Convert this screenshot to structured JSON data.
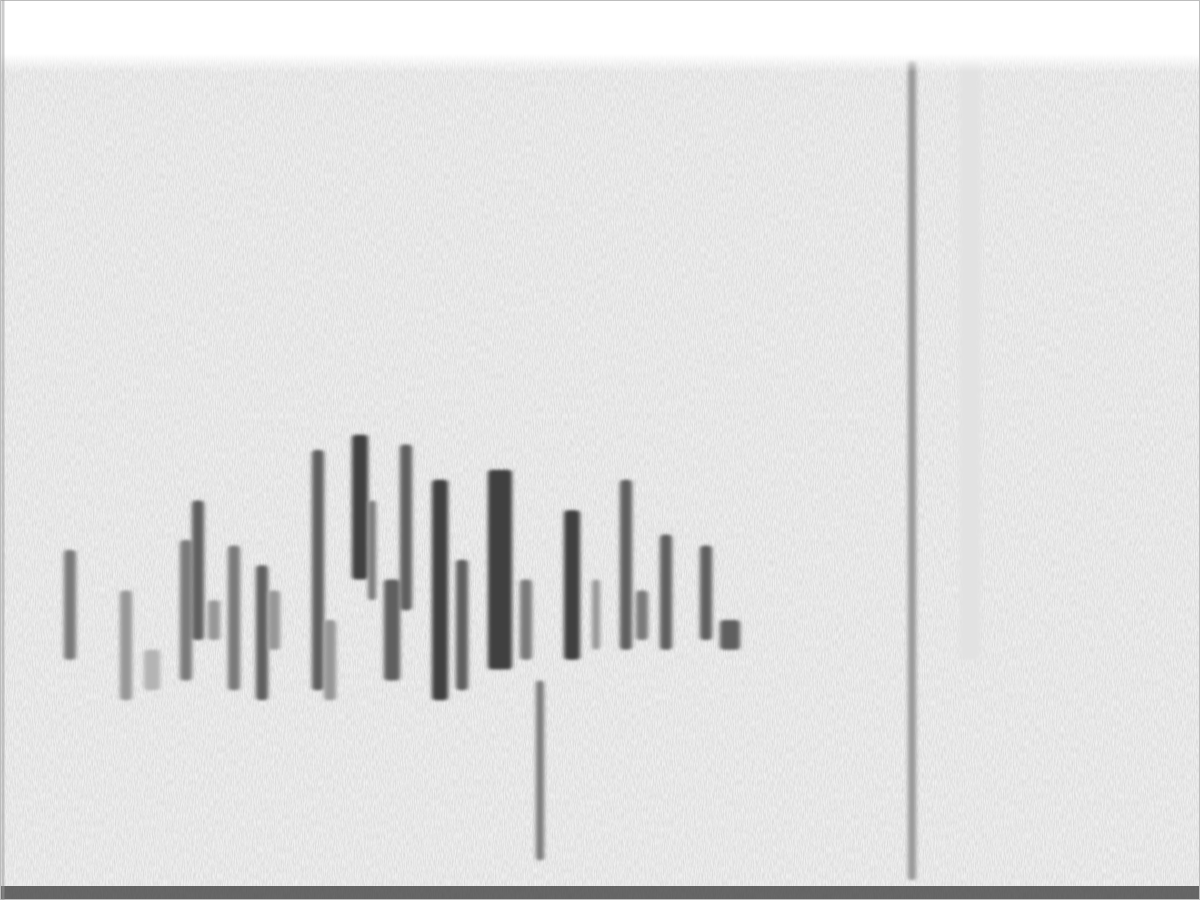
{
  "chart_data": {
    "type": "spectrogram",
    "xlim": [
      0,
      3
    ],
    "ylim": [
      0,
      10
    ],
    "tick_labels": false,
    "colorlim": [
      0,
      1
    ],
    "t_start": [
      0.16,
      0.3,
      0.36,
      0.45,
      0.48,
      0.52,
      0.57,
      0.64,
      0.67,
      0.78,
      0.81,
      0.88,
      0.92,
      0.96,
      1.0,
      1.08,
      1.14,
      1.22,
      1.3,
      1.34,
      1.41,
      1.48,
      1.55,
      1.59,
      1.65,
      1.75,
      1.8,
      2.27,
      2.4
    ],
    "t_end": [
      0.19,
      0.33,
      0.4,
      0.48,
      0.51,
      0.55,
      0.6,
      0.67,
      0.7,
      0.81,
      0.84,
      0.92,
      0.94,
      1.0,
      1.03,
      1.12,
      1.17,
      1.28,
      1.33,
      1.36,
      1.45,
      1.5,
      1.58,
      1.62,
      1.68,
      1.78,
      1.85,
      2.29,
      2.45
    ],
    "f_low": [
      2.67,
      2.22,
      2.33,
      2.44,
      2.89,
      2.89,
      2.33,
      2.22,
      2.78,
      2.33,
      2.22,
      3.56,
      3.33,
      2.44,
      3.22,
      2.22,
      2.33,
      2.56,
      2.67,
      0.44,
      2.67,
      2.78,
      2.78,
      2.89,
      2.78,
      2.89,
      2.78,
      0.22,
      2.67
    ],
    "f_high": [
      3.89,
      3.44,
      2.78,
      4.0,
      4.44,
      3.33,
      3.94,
      3.72,
      3.44,
      5.0,
      3.11,
      5.17,
      4.44,
      3.56,
      5.06,
      4.67,
      3.78,
      4.78,
      3.56,
      2.44,
      4.33,
      3.56,
      4.67,
      3.44,
      4.06,
      3.94,
      3.11,
      9.33,
      9.33
    ],
    "intensity": [
      0.6,
      0.5,
      0.4,
      0.6,
      0.7,
      0.5,
      0.6,
      0.7,
      0.5,
      0.7,
      0.5,
      0.8,
      0.6,
      0.7,
      0.7,
      0.8,
      0.7,
      0.8,
      0.6,
      0.6,
      0.8,
      0.5,
      0.7,
      0.6,
      0.7,
      0.7,
      0.7,
      0.5,
      0.2
    ]
  }
}
